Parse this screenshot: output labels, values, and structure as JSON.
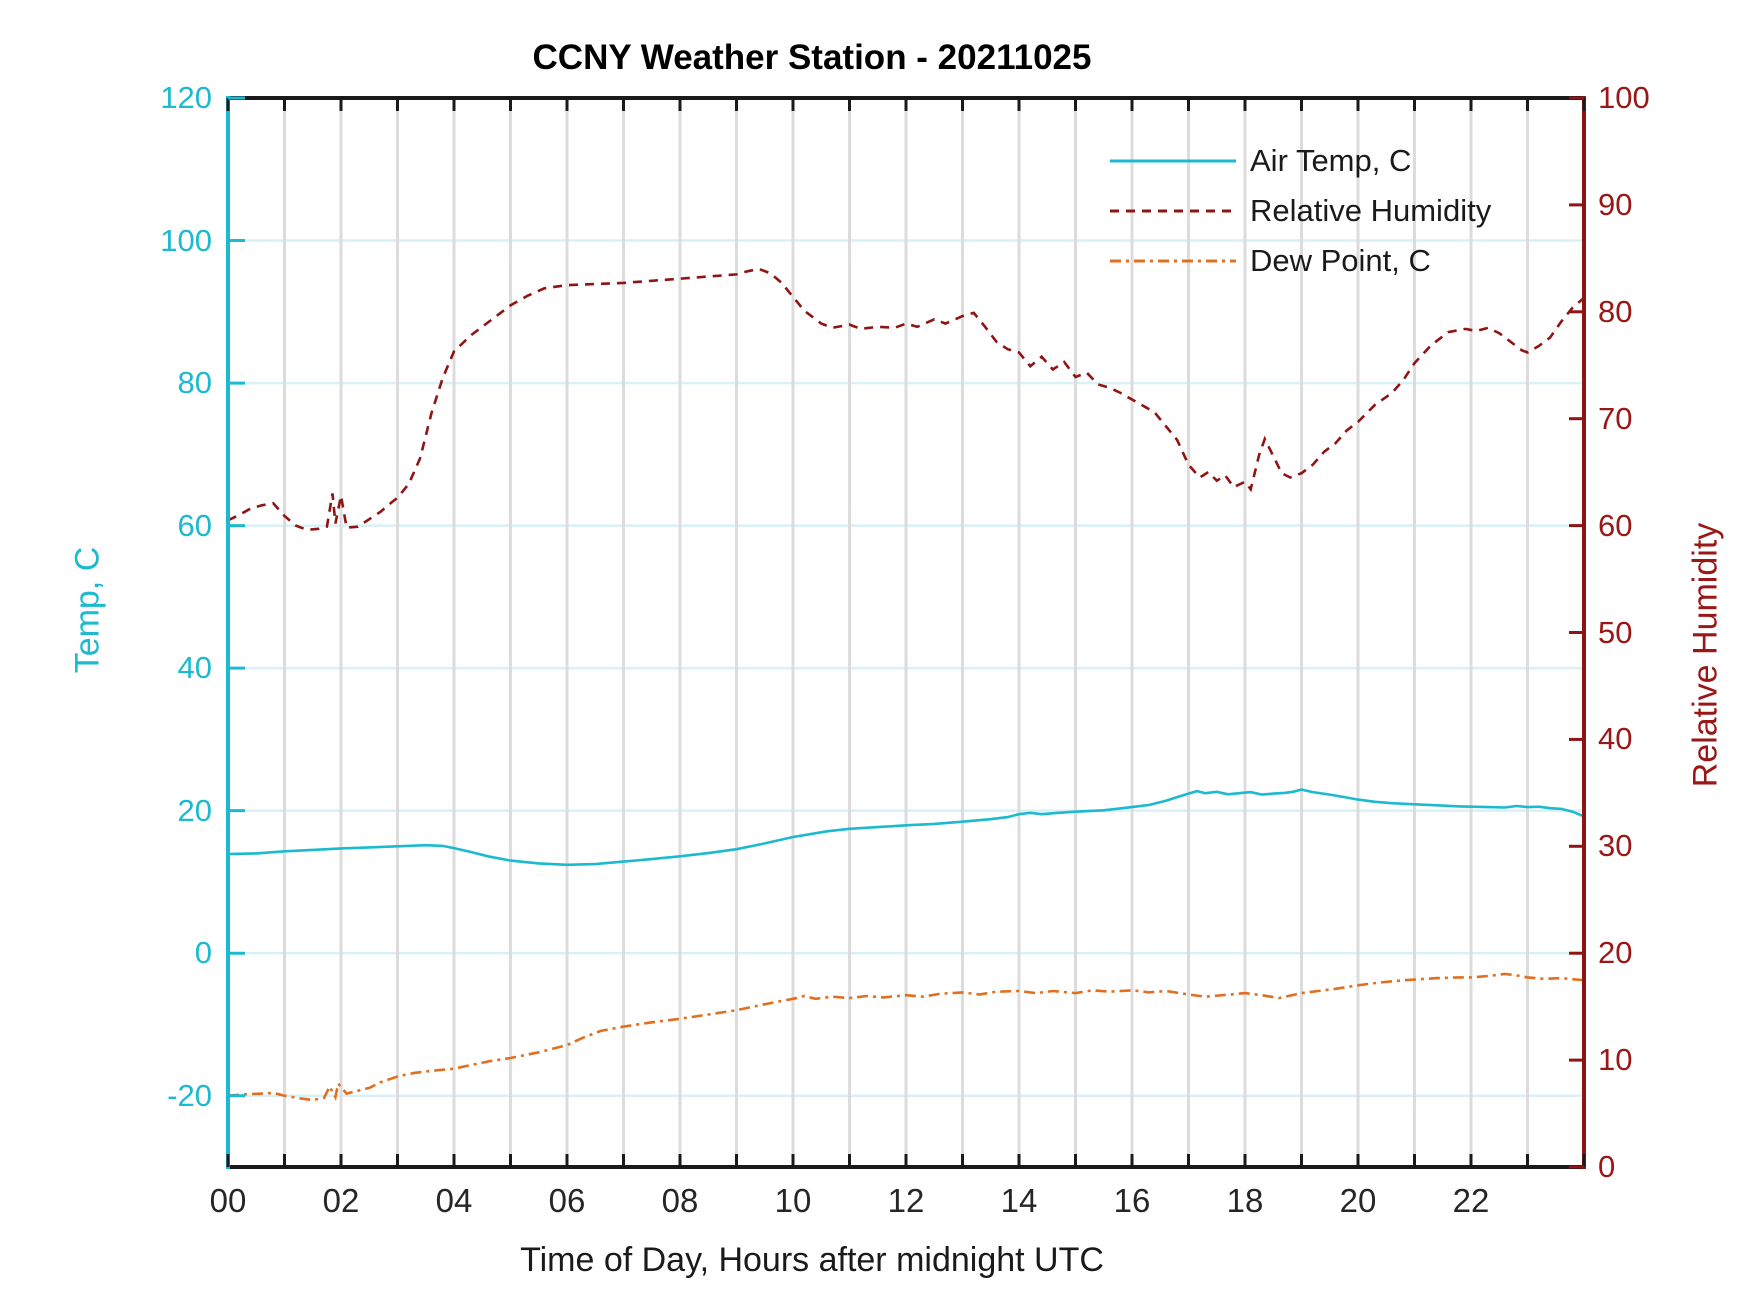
{
  "title": "CCNY Weather Station - 20211025",
  "xlabel": "Time of Day, Hours after midnight UTC",
  "left_axis": {
    "label": "Temp, C",
    "color": "#1cbad0",
    "range": [
      -30,
      120
    ],
    "tick_values": [
      -20,
      0,
      20,
      40,
      60,
      80,
      100,
      120
    ],
    "tick_labels": [
      "-20",
      "0",
      "20",
      "40",
      "60",
      "80",
      "100",
      "120"
    ]
  },
  "right_axis": {
    "label": "Relative Humidity",
    "color": "#9a1717",
    "range": [
      0,
      100
    ],
    "tick_values": [
      0,
      10,
      20,
      30,
      40,
      50,
      60,
      70,
      80,
      90,
      100
    ],
    "tick_labels": [
      "0",
      "10",
      "20",
      "30",
      "40",
      "50",
      "60",
      "70",
      "80",
      "90",
      "100"
    ]
  },
  "x_axis": {
    "range": [
      0,
      24
    ],
    "minor_tick_step": 1,
    "labeled_tick_values": [
      0,
      2,
      4,
      6,
      8,
      10,
      12,
      14,
      16,
      18,
      20,
      22
    ],
    "tick_labels": [
      "00",
      "02",
      "04",
      "06",
      "08",
      "10",
      "12",
      "14",
      "16",
      "18",
      "20",
      "22"
    ]
  },
  "grid": {
    "vertical_color": "#dcdcdc",
    "horizontal_color": "#d8f0f6"
  },
  "spines": {
    "top_bottom_color": "#1a1a1a",
    "left_color": "#1cbad0",
    "right_color": "#8f1414"
  },
  "chart_data": {
    "type": "line",
    "title": "CCNY Weather Station - 20211025",
    "xlabel": "Time of Day, Hours after midnight UTC",
    "x_range": [
      0,
      24
    ],
    "left_ylabel": "Temp, C",
    "left_ylim": [
      -30,
      120
    ],
    "right_ylabel": "Relative Humidity",
    "right_ylim": [
      0,
      100
    ],
    "grid": "on",
    "legend_position": "top-right-inside-no-box",
    "series": [
      {
        "name": "Air Temp, C",
        "axis": "left",
        "color": "#1cbad0",
        "style": "solid",
        "points": [
          [
            0,
            13.9
          ],
          [
            0.5,
            14.0
          ],
          [
            1,
            14.3
          ],
          [
            1.5,
            14.5
          ],
          [
            2,
            14.7
          ],
          [
            2.5,
            14.85
          ],
          [
            3,
            15.0
          ],
          [
            3.5,
            15.15
          ],
          [
            3.8,
            15.05
          ],
          [
            4,
            14.75
          ],
          [
            4.3,
            14.2
          ],
          [
            4.6,
            13.6
          ],
          [
            5,
            13.0
          ],
          [
            5.5,
            12.6
          ],
          [
            6,
            12.4
          ],
          [
            6.5,
            12.5
          ],
          [
            7,
            12.85
          ],
          [
            7.5,
            13.2
          ],
          [
            8,
            13.6
          ],
          [
            8.5,
            14.05
          ],
          [
            9,
            14.6
          ],
          [
            9.5,
            15.4
          ],
          [
            10,
            16.3
          ],
          [
            10.3,
            16.7
          ],
          [
            10.6,
            17.1
          ],
          [
            11,
            17.45
          ],
          [
            11.5,
            17.7
          ],
          [
            12,
            17.95
          ],
          [
            12.5,
            18.15
          ],
          [
            13,
            18.45
          ],
          [
            13.5,
            18.8
          ],
          [
            13.8,
            19.1
          ],
          [
            14,
            19.5
          ],
          [
            14.2,
            19.7
          ],
          [
            14.4,
            19.5
          ],
          [
            14.7,
            19.7
          ],
          [
            15,
            19.85
          ],
          [
            15.5,
            20.05
          ],
          [
            16,
            20.5
          ],
          [
            16.3,
            20.8
          ],
          [
            16.6,
            21.4
          ],
          [
            16.8,
            21.9
          ],
          [
            17,
            22.4
          ],
          [
            17.15,
            22.75
          ],
          [
            17.3,
            22.45
          ],
          [
            17.5,
            22.65
          ],
          [
            17.7,
            22.3
          ],
          [
            17.9,
            22.45
          ],
          [
            18.1,
            22.6
          ],
          [
            18.3,
            22.25
          ],
          [
            18.5,
            22.4
          ],
          [
            18.7,
            22.5
          ],
          [
            18.85,
            22.65
          ],
          [
            19,
            22.95
          ],
          [
            19.2,
            22.6
          ],
          [
            19.5,
            22.25
          ],
          [
            19.8,
            21.85
          ],
          [
            20,
            21.55
          ],
          [
            20.3,
            21.25
          ],
          [
            20.6,
            21.05
          ],
          [
            21,
            20.9
          ],
          [
            21.4,
            20.75
          ],
          [
            21.8,
            20.6
          ],
          [
            22,
            20.55
          ],
          [
            22.3,
            20.5
          ],
          [
            22.6,
            20.45
          ],
          [
            22.8,
            20.65
          ],
          [
            23,
            20.5
          ],
          [
            23.2,
            20.55
          ],
          [
            23.4,
            20.35
          ],
          [
            23.6,
            20.25
          ],
          [
            23.8,
            19.85
          ],
          [
            24,
            19.2
          ]
        ]
      },
      {
        "name": "Relative Humidity",
        "axis": "right",
        "color": "#8f1414",
        "style": "dashed",
        "points": [
          [
            0,
            60.5
          ],
          [
            0.2,
            61.0
          ],
          [
            0.4,
            61.6
          ],
          [
            0.6,
            61.9
          ],
          [
            0.8,
            62.1
          ],
          [
            1,
            60.9
          ],
          [
            1.2,
            60.0
          ],
          [
            1.4,
            59.6
          ],
          [
            1.6,
            59.7
          ],
          [
            1.75,
            59.9
          ],
          [
            1.85,
            63.0
          ],
          [
            1.9,
            60.2
          ],
          [
            2,
            62.8
          ],
          [
            2.1,
            59.8
          ],
          [
            2.3,
            59.9
          ],
          [
            2.5,
            60.6
          ],
          [
            2.7,
            61.3
          ],
          [
            2.9,
            62.2
          ],
          [
            3,
            62.6
          ],
          [
            3.2,
            63.9
          ],
          [
            3.4,
            66.3
          ],
          [
            3.6,
            70.5
          ],
          [
            3.8,
            73.8
          ],
          [
            4,
            76.3
          ],
          [
            4.3,
            77.8
          ],
          [
            4.6,
            79.0
          ],
          [
            5,
            80.6
          ],
          [
            5.3,
            81.5
          ],
          [
            5.6,
            82.2
          ],
          [
            6,
            82.5
          ],
          [
            6.5,
            82.6
          ],
          [
            7,
            82.7
          ],
          [
            7.5,
            82.9
          ],
          [
            8,
            83.1
          ],
          [
            8.5,
            83.3
          ],
          [
            9,
            83.5
          ],
          [
            9.2,
            83.8
          ],
          [
            9.4,
            84.0
          ],
          [
            9.6,
            83.6
          ],
          [
            9.8,
            82.7
          ],
          [
            10,
            81.4
          ],
          [
            10.2,
            80.1
          ],
          [
            10.5,
            78.9
          ],
          [
            10.7,
            78.5
          ],
          [
            11,
            78.8
          ],
          [
            11.2,
            78.4
          ],
          [
            11.5,
            78.6
          ],
          [
            11.8,
            78.5
          ],
          [
            12,
            78.9
          ],
          [
            12.2,
            78.6
          ],
          [
            12.5,
            79.3
          ],
          [
            12.7,
            78.9
          ],
          [
            13,
            79.6
          ],
          [
            13.2,
            79.9
          ],
          [
            13.4,
            78.6
          ],
          [
            13.6,
            77.2
          ],
          [
            13.8,
            76.5
          ],
          [
            14,
            76.2
          ],
          [
            14.2,
            74.9
          ],
          [
            14.4,
            75.8
          ],
          [
            14.6,
            74.6
          ],
          [
            14.8,
            75.3
          ],
          [
            15,
            73.9
          ],
          [
            15.2,
            74.3
          ],
          [
            15.4,
            73.2
          ],
          [
            15.6,
            72.9
          ],
          [
            15.8,
            72.4
          ],
          [
            16,
            71.8
          ],
          [
            16.2,
            71.2
          ],
          [
            16.4,
            70.6
          ],
          [
            16.6,
            69.3
          ],
          [
            16.8,
            68.0
          ],
          [
            17,
            65.7
          ],
          [
            17.2,
            64.5
          ],
          [
            17.35,
            65.0
          ],
          [
            17.5,
            64.2
          ],
          [
            17.65,
            64.7
          ],
          [
            17.8,
            63.6
          ],
          [
            18,
            64.1
          ],
          [
            18.1,
            63.4
          ],
          [
            18.25,
            66.6
          ],
          [
            18.35,
            68.1
          ],
          [
            18.5,
            66.5
          ],
          [
            18.65,
            64.9
          ],
          [
            18.8,
            64.5
          ],
          [
            19,
            64.9
          ],
          [
            19.2,
            65.7
          ],
          [
            19.4,
            66.9
          ],
          [
            19.6,
            67.7
          ],
          [
            19.8,
            68.9
          ],
          [
            20,
            69.7
          ],
          [
            20.3,
            71.3
          ],
          [
            20.6,
            72.4
          ],
          [
            20.8,
            73.6
          ],
          [
            21,
            75.2
          ],
          [
            21.3,
            76.9
          ],
          [
            21.6,
            78.1
          ],
          [
            21.9,
            78.4
          ],
          [
            22.1,
            78.2
          ],
          [
            22.3,
            78.5
          ],
          [
            22.5,
            78.0
          ],
          [
            22.7,
            77.2
          ],
          [
            22.9,
            76.4
          ],
          [
            23,
            76.2
          ],
          [
            23.2,
            76.8
          ],
          [
            23.4,
            77.6
          ],
          [
            23.6,
            79.1
          ],
          [
            23.8,
            80.4
          ],
          [
            24,
            81.3
          ]
        ]
      },
      {
        "name": "Dew Point, C",
        "axis": "left",
        "color": "#e0701f",
        "style": "dashdot",
        "points": [
          [
            0,
            -20.0
          ],
          [
            0.3,
            -19.8
          ],
          [
            0.6,
            -19.7
          ],
          [
            0.8,
            -19.6
          ],
          [
            1,
            -20.0
          ],
          [
            1.3,
            -20.4
          ],
          [
            1.5,
            -20.6
          ],
          [
            1.7,
            -20.3
          ],
          [
            1.8,
            -18.7
          ],
          [
            1.9,
            -20.2
          ],
          [
            1.95,
            -18.3
          ],
          [
            2.1,
            -19.7
          ],
          [
            2.3,
            -19.3
          ],
          [
            2.5,
            -18.9
          ],
          [
            2.7,
            -18.1
          ],
          [
            3,
            -17.3
          ],
          [
            3.3,
            -16.8
          ],
          [
            3.6,
            -16.5
          ],
          [
            4,
            -16.2
          ],
          [
            4.3,
            -15.7
          ],
          [
            4.6,
            -15.2
          ],
          [
            5,
            -14.7
          ],
          [
            5.5,
            -13.9
          ],
          [
            6,
            -12.9
          ],
          [
            6.3,
            -11.8
          ],
          [
            6.6,
            -10.9
          ],
          [
            7,
            -10.3
          ],
          [
            7.5,
            -9.7
          ],
          [
            8,
            -9.2
          ],
          [
            8.5,
            -8.6
          ],
          [
            9,
            -8.0
          ],
          [
            9.3,
            -7.5
          ],
          [
            9.6,
            -7.0
          ],
          [
            10,
            -6.4
          ],
          [
            10.2,
            -6.0
          ],
          [
            10.4,
            -6.4
          ],
          [
            10.7,
            -6.1
          ],
          [
            11,
            -6.3
          ],
          [
            11.3,
            -6.0
          ],
          [
            11.6,
            -6.2
          ],
          [
            12,
            -5.9
          ],
          [
            12.3,
            -6.1
          ],
          [
            12.6,
            -5.7
          ],
          [
            13,
            -5.5
          ],
          [
            13.3,
            -5.8
          ],
          [
            13.6,
            -5.4
          ],
          [
            14,
            -5.3
          ],
          [
            14.3,
            -5.6
          ],
          [
            14.6,
            -5.3
          ],
          [
            15,
            -5.6
          ],
          [
            15.3,
            -5.2
          ],
          [
            15.6,
            -5.4
          ],
          [
            16,
            -5.2
          ],
          [
            16.3,
            -5.5
          ],
          [
            16.6,
            -5.3
          ],
          [
            17,
            -5.8
          ],
          [
            17.3,
            -6.1
          ],
          [
            17.6,
            -5.9
          ],
          [
            18,
            -5.6
          ],
          [
            18.3,
            -5.9
          ],
          [
            18.6,
            -6.3
          ],
          [
            19,
            -5.6
          ],
          [
            19.3,
            -5.3
          ],
          [
            19.6,
            -5.0
          ],
          [
            20,
            -4.5
          ],
          [
            20.4,
            -4.1
          ],
          [
            20.8,
            -3.8
          ],
          [
            21,
            -3.7
          ],
          [
            21.4,
            -3.5
          ],
          [
            21.8,
            -3.4
          ],
          [
            22,
            -3.4
          ],
          [
            22.3,
            -3.2
          ],
          [
            22.6,
            -2.9
          ],
          [
            22.8,
            -3.1
          ],
          [
            23,
            -3.4
          ],
          [
            23.3,
            -3.6
          ],
          [
            23.6,
            -3.5
          ],
          [
            24,
            -3.8
          ]
        ]
      }
    ]
  }
}
